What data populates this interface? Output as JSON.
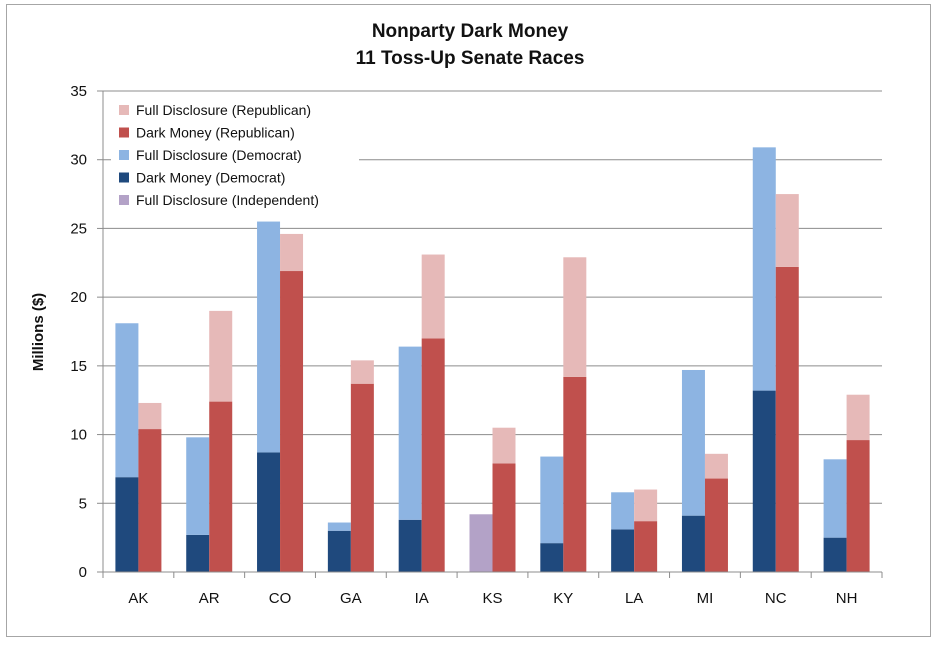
{
  "chart_data": {
    "type": "bar",
    "title": [
      "Nonparty Dark Money",
      "11 Toss-Up Senate Races"
    ],
    "ylabel": "Millions  ($)",
    "xlabel": "",
    "ylim": [
      0,
      35
    ],
    "yticks": [
      0,
      5,
      10,
      15,
      20,
      25,
      30,
      35
    ],
    "grid": true,
    "legend_position": "top-left",
    "categories": [
      "AK",
      "AR",
      "CO",
      "GA",
      "IA",
      "KS",
      "KY",
      "LA",
      "MI",
      "NC",
      "NH"
    ],
    "legend": [
      {
        "label": "Full Disclosure (Republican)",
        "color": "#e6b9b8"
      },
      {
        "label": "Dark Money (Republican)",
        "color": "#c0504d"
      },
      {
        "label": "Full Disclosure (Democrat)",
        "color": "#8db4e2"
      },
      {
        "label": "Dark Money (Democrat)",
        "color": "#1f497d"
      },
      {
        "label": "Full Disclosure (Independent)",
        "color": "#b3a2c7"
      }
    ],
    "stacks": [
      {
        "name": "Democrat / Independent",
        "position": "left",
        "segments": [
          {
            "name": "Dark Money (Democrat)",
            "color": "#1f497d",
            "values": [
              6.9,
              2.7,
              8.7,
              3.0,
              3.8,
              0,
              2.1,
              3.1,
              4.1,
              13.2,
              2.5
            ]
          },
          {
            "name": "Full Disclosure (Democrat)",
            "color": "#8db4e2",
            "values": [
              11.2,
              7.1,
              16.8,
              0.6,
              12.6,
              0,
              6.3,
              2.7,
              10.6,
              17.7,
              5.7
            ]
          },
          {
            "name": "Full Disclosure (Independent)",
            "color": "#b3a2c7",
            "values": [
              0,
              0,
              0,
              0,
              0,
              4.2,
              0,
              0,
              0,
              0,
              0
            ]
          }
        ]
      },
      {
        "name": "Republican",
        "position": "right",
        "segments": [
          {
            "name": "Dark Money (Republican)",
            "color": "#c0504d",
            "values": [
              10.4,
              12.4,
              21.9,
              13.7,
              17.0,
              7.9,
              14.2,
              3.7,
              6.8,
              22.2,
              9.6
            ]
          },
          {
            "name": "Full Disclosure (Republican)",
            "color": "#e6b9b8",
            "values": [
              1.9,
              6.6,
              2.7,
              1.7,
              6.1,
              2.6,
              8.7,
              2.3,
              1.8,
              5.3,
              3.3
            ]
          }
        ]
      }
    ]
  }
}
